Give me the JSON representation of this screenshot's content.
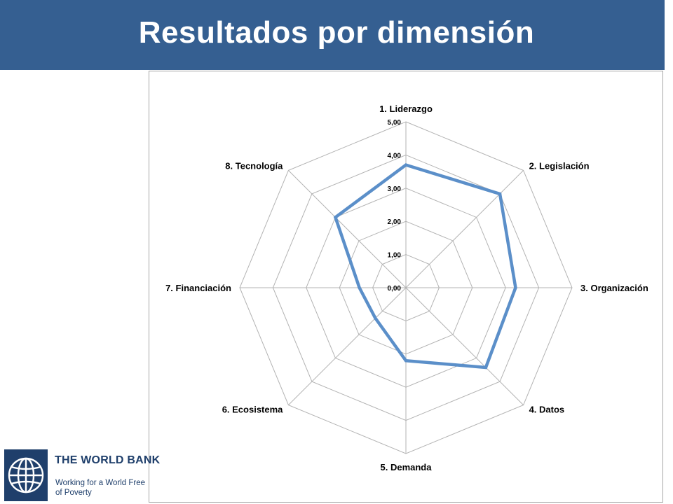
{
  "slide": {
    "title": "Resultados por dimensión"
  },
  "logo": {
    "name": "THE WORLD BANK",
    "tagline": "Working for a World Free of Poverty",
    "icon": "world-bank-globe-icon",
    "color": "#1f3f6b"
  },
  "colors": {
    "title_bar": "#355f91",
    "series_line": "#5b8fc9",
    "grid": "#b3b3b3"
  },
  "chart_data": {
    "type": "radar",
    "title": "",
    "categories": [
      "1. Liderazgo",
      "2. Legislación",
      "3. Organización",
      "4. Datos",
      "5. Demanda",
      "6. Ecosistema",
      "7. Financiación",
      "8. Tecnología"
    ],
    "series": [
      {
        "values": [
          3.7,
          4.0,
          3.3,
          3.4,
          2.2,
          1.3,
          1.4,
          3.0
        ]
      }
    ],
    "rlim": [
      0,
      5
    ],
    "ticks": [
      "0,00",
      "1,00",
      "2,00",
      "3,00",
      "4,00",
      "5,00"
    ],
    "grid": true,
    "legend": "none"
  }
}
